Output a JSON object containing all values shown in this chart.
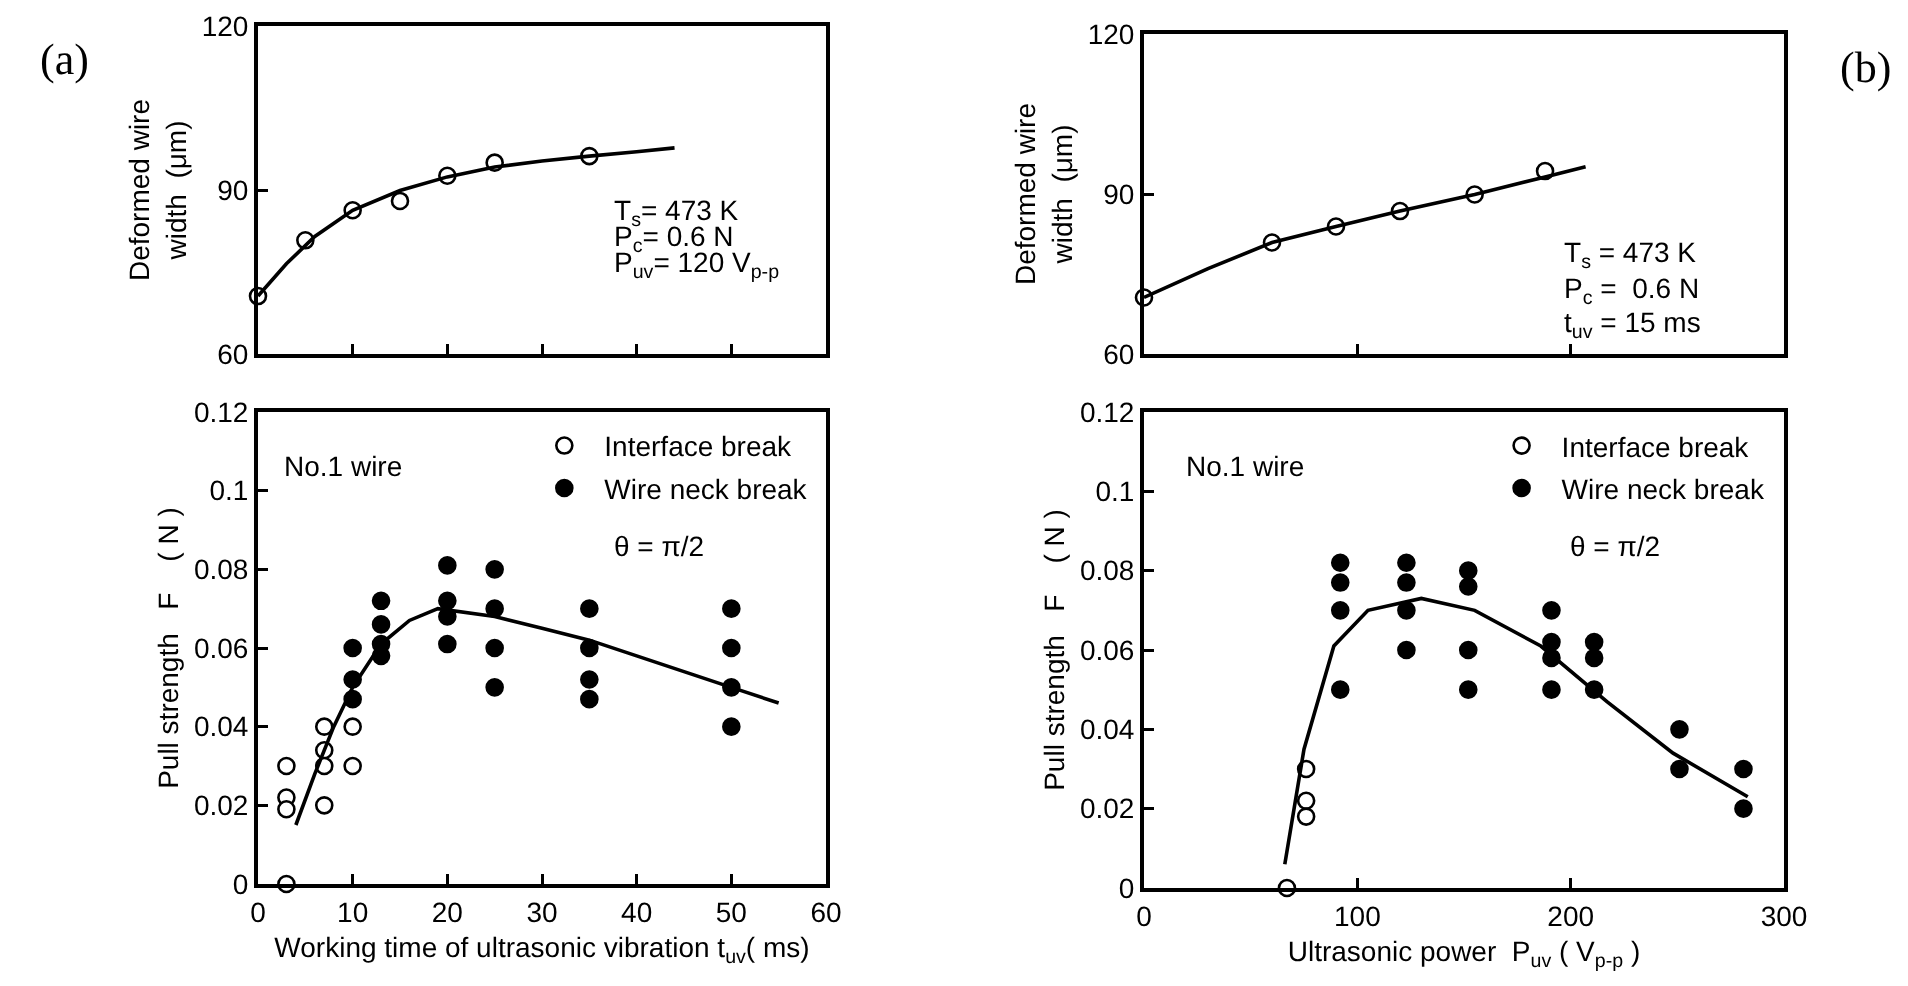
{
  "chart_data": [
    {
      "type": "scatter",
      "ylabel": "Deformed wire\nwidth  (μm)",
      "xlim": [
        0,
        60
      ],
      "xticks": [
        {
          "value": 10,
          "label": null
        },
        {
          "value": 20,
          "label": null
        },
        {
          "value": 30,
          "label": null
        },
        {
          "value": 40,
          "label": null
        },
        {
          "value": 50,
          "label": null
        }
      ],
      "ylim": [
        60,
        120
      ],
      "yticks": [
        60,
        90,
        120
      ],
      "tick_labels": "y",
      "legend": false,
      "grid": false,
      "annotations": [
        "T$_{s}$= 473 K",
        "P$_{c}$= 0.6 N",
        "P$_{uv}$= 120 V$_{p-p}$",
        "(a)"
      ],
      "series": [
        {
          "type": "scatter",
          "marker": "circle",
          "color": "#ffffff",
          "x": [
            0,
            5,
            10,
            15,
            20,
            25,
            35
          ],
          "values": [
            70.6,
            80.8,
            86.3,
            88,
            92.6,
            95,
            96.2
          ]
        },
        {
          "type": "line",
          "marker": "none",
          "color": "#000000",
          "x": [
            0,
            3,
            6,
            10,
            15,
            20,
            25,
            30,
            35,
            40,
            44
          ],
          "values": [
            70.6,
            76.5,
            81.5,
            86.3,
            89.9,
            92.4,
            94.2,
            95.3,
            96.2,
            97,
            97.7
          ]
        }
      ]
    },
    {
      "type": "scatter",
      "ylabel": "Deformed wire\nwidth  (μm)",
      "xlim": [
        0,
        300
      ],
      "xticks": [
        {
          "value": 100,
          "label": null
        },
        {
          "value": 200,
          "label": null
        }
      ],
      "ylim": [
        60,
        120
      ],
      "yticks": [
        60,
        90,
        120
      ],
      "tick_labels": "y",
      "legend": false,
      "grid": false,
      "annotations": [
        "T$_{s}$ = 473 K",
        "P$_{c}$ =  0.6 N",
        "t$_{uv}$ = 15 ms",
        "(b)"
      ],
      "series": [
        {
          "type": "scatter",
          "marker": "circle",
          "color": "#ffffff",
          "x": [
            0,
            60,
            90,
            120,
            155,
            188
          ],
          "values": [
            70.6,
            80.9,
            83.9,
            86.8,
            89.9,
            94.3
          ]
        },
        {
          "type": "line",
          "marker": "none",
          "color": "#000000",
          "x": [
            0,
            30,
            60,
            90,
            120,
            155,
            188,
            207
          ],
          "values": [
            70.6,
            76,
            80.9,
            83.9,
            86.8,
            89.9,
            93.2,
            95.1
          ]
        }
      ]
    },
    {
      "type": "scatter",
      "ylabel": "Pull strength   F    ( N )",
      "xlabel": "Working time of ultrasonic vibration t$_{uv}$( ms)",
      "xlim": [
        0,
        60
      ],
      "xticks": [
        0,
        10,
        20,
        30,
        40,
        50,
        60
      ],
      "ylim": [
        0,
        0.12
      ],
      "yticks": [
        0,
        0.02,
        0.04,
        0.06,
        0.08,
        0.1,
        0.12
      ],
      "legend": "top right",
      "grid": false,
      "annotations": [
        "No.1 wire",
        "θ = π/2"
      ],
      "series": [
        {
          "name": "Interface break",
          "type": "scatter",
          "marker": "circle",
          "color": "#ffffff",
          "x": [
            3,
            3,
            3,
            3,
            7,
            7,
            7,
            7,
            10,
            10
          ],
          "values": [
            0.03,
            0.022,
            0.019,
            0,
            0.04,
            0.034,
            0.03,
            0.02,
            0.04,
            0.03
          ]
        },
        {
          "name": "Wire neck break",
          "type": "scatter",
          "marker": "circle",
          "color": "#000000",
          "x": [
            10,
            10,
            10,
            13,
            13,
            13,
            13,
            20,
            20,
            20,
            20,
            25,
            25,
            25,
            25,
            35,
            35,
            35,
            35,
            50,
            50,
            50,
            50
          ],
          "values": [
            0.06,
            0.052,
            0.047,
            0.072,
            0.066,
            0.061,
            0.058,
            0.081,
            0.072,
            0.068,
            0.061,
            0.08,
            0.07,
            0.06,
            0.05,
            0.07,
            0.06,
            0.052,
            0.047,
            0.07,
            0.06,
            0.05,
            0.04
          ]
        },
        {
          "type": "line",
          "marker": "none",
          "color": "#000000",
          "x": [
            4,
            6,
            8,
            10,
            13,
            16,
            19,
            25,
            30,
            35,
            40,
            45,
            50,
            55
          ],
          "values": [
            0.015,
            0.028,
            0.04,
            0.05,
            0.061,
            0.067,
            0.07,
            0.068,
            0.065,
            0.062,
            0.058,
            0.054,
            0.05,
            0.046
          ]
        }
      ]
    },
    {
      "type": "scatter",
      "ylabel": "Pull strength   F    ( N )",
      "xlabel": "Ultrasonic power  P$_{uv}$ ( V$_{p-p}$ )",
      "xlim": [
        0,
        300
      ],
      "xticks": [
        0,
        100,
        200,
        300
      ],
      "ylim": [
        0,
        0.12
      ],
      "yticks": [
        0,
        0.02,
        0.04,
        0.06,
        0.08,
        0.1,
        0.12
      ],
      "legend": "top right",
      "grid": false,
      "annotations": [
        "No.1 wire",
        "θ = π/2"
      ],
      "series": [
        {
          "name": "Interface break",
          "type": "scatter",
          "marker": "circle",
          "color": "#ffffff",
          "x": [
            67,
            76,
            76,
            76
          ],
          "values": [
            0,
            0.03,
            0.022,
            0.018
          ]
        },
        {
          "name": "Wire neck break",
          "type": "scatter",
          "marker": "circle",
          "color": "#000000",
          "x": [
            92,
            92,
            92,
            92,
            123,
            123,
            123,
            123,
            152,
            152,
            152,
            152,
            191,
            191,
            191,
            191,
            211,
            211,
            211,
            251,
            251,
            281,
            281
          ],
          "values": [
            0.082,
            0.077,
            0.07,
            0.05,
            0.082,
            0.077,
            0.07,
            0.06,
            0.08,
            0.076,
            0.06,
            0.05,
            0.07,
            0.062,
            0.058,
            0.05,
            0.062,
            0.058,
            0.05,
            0.04,
            0.03,
            0.03,
            0.02
          ]
        },
        {
          "type": "line",
          "marker": "none",
          "color": "#000000",
          "x": [
            66,
            75,
            89,
            105,
            130,
            155,
            186,
            217,
            248,
            283
          ],
          "values": [
            0.006,
            0.035,
            0.061,
            0.07,
            0.073,
            0.07,
            0.061,
            0.047,
            0.034,
            0.023
          ]
        }
      ]
    }
  ]
}
